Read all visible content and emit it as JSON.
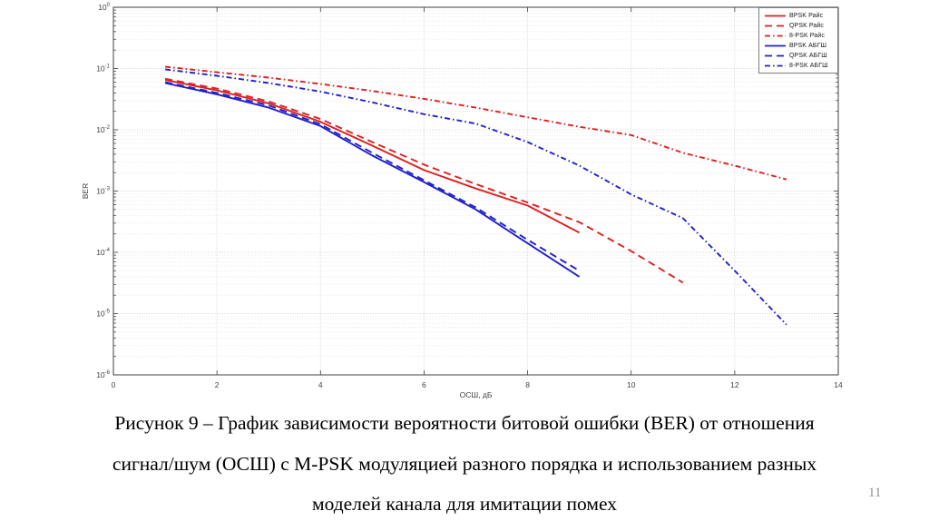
{
  "page_number": "11",
  "caption": {
    "line1": "Рисунок 9 – График зависимости вероятности битовой ошибки (BER) от отношения",
    "line2": "сигнал/шум (ОСШ) с M-PSK модуляцией разного порядка и использованием разных",
    "line3": "моделей канала для имитации помех"
  },
  "chart_data": {
    "type": "line",
    "title": "",
    "xlabel": "ОСШ, дБ",
    "ylabel": "BER",
    "xlim": [
      0,
      14
    ],
    "x_ticks": [
      0,
      2,
      4,
      6,
      8,
      10,
      12,
      14
    ],
    "y_scale": "log",
    "ylim": [
      1e-06,
      1
    ],
    "y_tick_exponents": [
      0,
      -1,
      -2,
      -3,
      -4,
      -5,
      -6
    ],
    "grid": true,
    "legend_position": "top-right",
    "series": [
      {
        "id": "bpsk-rice",
        "name": "BPSK Райс",
        "color": "#dd2020",
        "style": "solid",
        "x": [
          1,
          2,
          3,
          4,
          5,
          6,
          7,
          8,
          9
        ],
        "y": [
          0.065,
          0.044,
          0.027,
          0.0135,
          0.0055,
          0.0022,
          0.0011,
          0.00058,
          0.00021
        ]
      },
      {
        "id": "qpsk-rice",
        "name": "QPSK Райс",
        "color": "#dd2020",
        "style": "dashed",
        "x": [
          1,
          2,
          3,
          4,
          5,
          6,
          7,
          8,
          9,
          10,
          11
        ],
        "y": [
          0.068,
          0.047,
          0.029,
          0.015,
          0.0063,
          0.0027,
          0.0013,
          0.00065,
          0.00031,
          0.000105,
          3.2e-05
        ]
      },
      {
        "id": "8psk-rice",
        "name": "8-PSK Райс",
        "color": "#dd2020",
        "style": "dashdot",
        "x": [
          1,
          2,
          3,
          4,
          5,
          6,
          7,
          8,
          9,
          10,
          11,
          12,
          13
        ],
        "y": [
          0.107,
          0.087,
          0.071,
          0.056,
          0.043,
          0.032,
          0.023,
          0.016,
          0.0112,
          0.0082,
          0.0042,
          0.0026,
          0.00155
        ]
      },
      {
        "id": "bpsk-awgn",
        "name": "BPSK АБГШ",
        "color": "#2020cc",
        "style": "solid",
        "x": [
          1,
          2,
          3,
          4,
          5,
          6,
          7,
          8,
          9
        ],
        "y": [
          0.058,
          0.038,
          0.023,
          0.0115,
          0.0038,
          0.0014,
          0.0005,
          0.00014,
          4e-05
        ]
      },
      {
        "id": "qpsk-awgn",
        "name": "QPSK АБГШ",
        "color": "#2020cc",
        "style": "dashed",
        "x": [
          1,
          2,
          3,
          4,
          5,
          6,
          7,
          8,
          9
        ],
        "y": [
          0.06,
          0.04,
          0.025,
          0.0123,
          0.0042,
          0.0015,
          0.00054,
          0.00016,
          5e-05
        ]
      },
      {
        "id": "8psk-awgn",
        "name": "8-PSK АБГШ",
        "color": "#2020cc",
        "style": "dashdot",
        "x": [
          1,
          2,
          3,
          4,
          5,
          6,
          7,
          8,
          9,
          10,
          11,
          12,
          13
        ],
        "y": [
          0.097,
          0.076,
          0.058,
          0.042,
          0.028,
          0.018,
          0.0126,
          0.0063,
          0.0026,
          0.00088,
          0.00036,
          5e-05,
          6.6e-06
        ]
      }
    ]
  }
}
